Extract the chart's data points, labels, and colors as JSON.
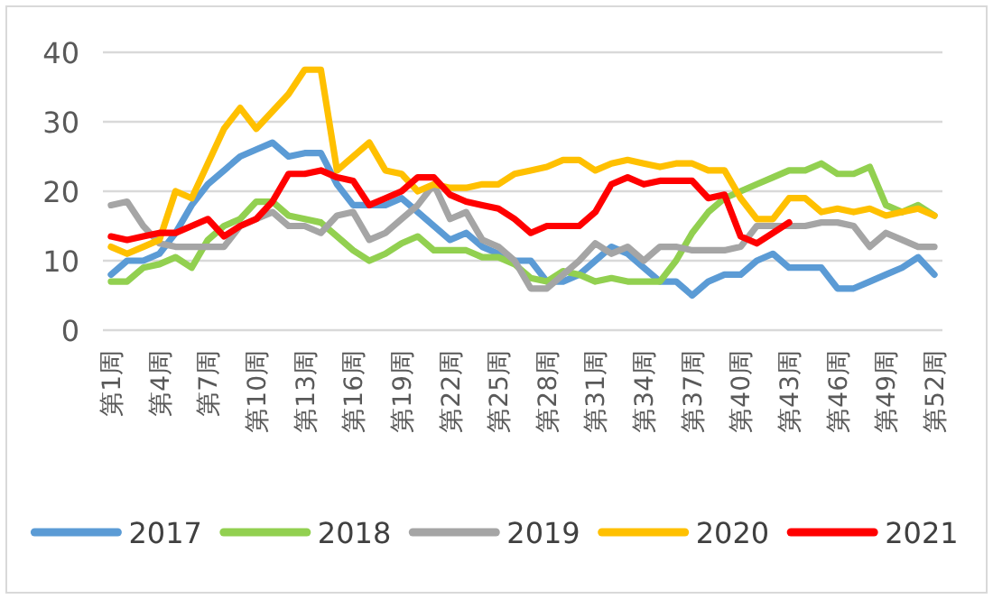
{
  "chart_data": {
    "type": "line",
    "categories": [
      "第1周",
      null,
      null,
      "第4周",
      null,
      null,
      "第7周",
      null,
      null,
      "第10周",
      null,
      null,
      "第13周",
      null,
      null,
      "第16周",
      null,
      null,
      "第19周",
      null,
      null,
      "第22周",
      null,
      null,
      "第25周",
      null,
      null,
      "第28周",
      null,
      null,
      "第31周",
      null,
      null,
      "第34周",
      null,
      null,
      "第37周",
      null,
      null,
      "第40周",
      null,
      null,
      "第43周",
      null,
      null,
      "第46周",
      null,
      null,
      "第49周",
      null,
      null,
      "第52周"
    ],
    "series": [
      {
        "name": "2017",
        "color": "#5b9bd5",
        "values": [
          8,
          10,
          10,
          11,
          14,
          18,
          21,
          23,
          25,
          26,
          27,
          25,
          25.5,
          25.5,
          21,
          18,
          18,
          18,
          19,
          17,
          15,
          13,
          14,
          12,
          11,
          10,
          10,
          7,
          7,
          8,
          10,
          12,
          11,
          9,
          7,
          7,
          5,
          7,
          8,
          8,
          10,
          11,
          9,
          9,
          9,
          6,
          6,
          7,
          8,
          9,
          10.5,
          8
        ]
      },
      {
        "name": "2018",
        "color": "#92d050",
        "values": [
          7,
          7,
          9,
          9.5,
          10.5,
          9,
          13,
          15,
          16,
          18.5,
          18.5,
          16.5,
          16,
          15.5,
          13.5,
          11.5,
          10,
          11,
          12.5,
          13.5,
          11.5,
          11.5,
          11.5,
          10.5,
          10.5,
          9.5,
          7.5,
          7,
          8.5,
          8,
          7,
          7.5,
          7,
          7,
          7,
          10,
          14,
          17,
          19,
          20,
          21,
          22,
          23,
          23,
          24,
          22.5,
          22.5,
          23.5,
          18,
          17,
          18,
          16.5
        ]
      },
      {
        "name": "2019",
        "color": "#a5a5a5",
        "values": [
          18,
          18.5,
          15,
          12.5,
          12,
          12,
          12,
          12,
          15,
          16,
          17,
          15,
          15,
          14,
          16.5,
          17,
          13,
          14,
          16,
          18,
          21,
          16,
          17,
          13,
          12,
          10,
          6,
          6,
          8,
          10,
          12.5,
          11,
          12,
          10,
          12,
          12,
          11.5,
          11.5,
          11.5,
          12,
          15,
          15,
          15,
          15,
          15.5,
          15.5,
          15,
          12,
          14,
          13,
          12,
          12
        ]
      },
      {
        "name": "2020",
        "color": "#ffc000",
        "values": [
          12,
          11,
          12,
          13,
          20,
          19,
          24,
          29,
          32,
          29,
          31.5,
          34,
          37.5,
          37.5,
          23,
          25,
          27,
          23,
          22.5,
          20,
          21,
          20.5,
          20.5,
          21,
          21,
          22.5,
          23,
          23.5,
          24.5,
          24.5,
          23,
          24,
          24.5,
          24,
          23.5,
          24,
          24,
          23,
          23,
          19,
          16,
          16,
          19,
          19,
          17,
          17.5,
          17,
          17.5,
          16.5,
          17,
          17.5,
          16.5
        ]
      },
      {
        "name": "2021",
        "color": "#ff0000",
        "values": [
          13.5,
          13,
          13.5,
          14,
          14,
          15,
          16,
          13.5,
          15,
          16,
          18.5,
          22.5,
          22.5,
          23,
          22,
          21.5,
          18,
          19,
          20,
          22,
          22,
          19.5,
          18.5,
          18,
          17.5,
          16,
          14,
          15,
          15,
          15,
          17,
          21,
          22,
          21,
          21.5,
          21.5,
          21.5,
          19,
          19.5,
          13.5,
          12.5,
          14,
          15.5,
          null,
          null,
          null,
          null,
          null,
          null,
          null,
          null,
          null
        ]
      }
    ],
    "ylim": [
      0,
      40
    ],
    "yticks": [
      0,
      10,
      20,
      30,
      40
    ],
    "grid": "y",
    "legend": "bottom",
    "marker": "none",
    "line_style": "solid"
  }
}
